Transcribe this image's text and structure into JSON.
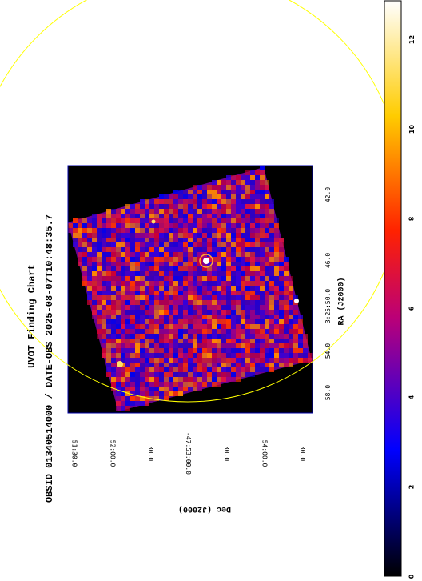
{
  "title": "UVOT Finding Chart",
  "subtitle": "OBSID 01340514000 / DATE-OBS 2025-08-07T10:48:35.7",
  "ra_axis": {
    "label": "RA (J2000)",
    "ticks": [
      "58.0",
      "54.0",
      "3:25:50.0",
      "46.0",
      "42.0"
    ]
  },
  "dec_axis": {
    "label": "Dec (J2000)",
    "ticks": [
      "51:30.0",
      "52:00.0",
      "30.0",
      "-47:53:00.0",
      "30.0",
      "54:00.0",
      "30.0"
    ]
  },
  "colorbar": {
    "ticks": [
      "0",
      "2",
      "4",
      "6",
      "8",
      "10",
      "12"
    ],
    "colormap": [
      "#000000",
      "#0000ff",
      "#ff0000",
      "#ffff00",
      "#ffffff"
    ]
  },
  "colors": {
    "frame": "#0000aa",
    "circle": "#ffff00",
    "source_marker": "#ffaa33"
  }
}
